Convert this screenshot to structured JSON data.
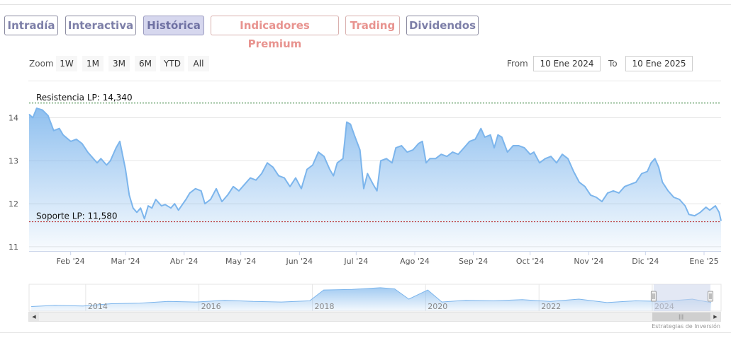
{
  "tabs": [
    {
      "label": "Intradía",
      "style": "blue"
    },
    {
      "label": "Interactiva",
      "style": "blue"
    },
    {
      "label": "Histórica",
      "style": "active"
    },
    {
      "label": "Indicadores Premium",
      "style": "red"
    },
    {
      "label": "Trading",
      "style": "red"
    },
    {
      "label": "Dividendos",
      "style": "blue"
    }
  ],
  "toolbar": {
    "zoom_label": "Zoom",
    "zoom_buttons": [
      "1W",
      "1M",
      "3M",
      "6M",
      "YTD",
      "All"
    ],
    "from_label": "From",
    "from_value": "10 Ene 2024",
    "to_label": "To",
    "to_value": "10 Ene 2025"
  },
  "credits": "Estrategias de Inversión",
  "colors": {
    "line": "#7cb5ec",
    "area_top": "#7cb5ec",
    "resistance": "#2e7d32",
    "support": "#b71c1c",
    "navigator_mask": "#ccd6eb"
  },
  "chart_data": {
    "type": "area",
    "title": "",
    "xlabel": "",
    "ylabel": "",
    "y_ticks": [
      "11",
      "12",
      "13",
      "14"
    ],
    "ylim": [
      10.9,
      14.6
    ],
    "x_ticks": [
      "Feb '24",
      "Mar '24",
      "Abr '24",
      "May '24",
      "Jun '24",
      "Jul '24",
      "Ago '24",
      "Sep '24",
      "Oct '24",
      "Nov '24",
      "Dic '24",
      "Ene '25"
    ],
    "x_range": [
      "2024-01-10",
      "2025-01-10"
    ],
    "grid": true,
    "series": [
      {
        "points": [
          [
            "2024-01-10",
            14.08
          ],
          [
            "2024-01-12",
            14.0
          ],
          [
            "2024-01-14",
            14.22
          ],
          [
            "2024-01-17",
            14.18
          ],
          [
            "2024-01-20",
            14.05
          ],
          [
            "2024-01-23",
            13.7
          ],
          [
            "2024-01-26",
            13.75
          ],
          [
            "2024-01-28",
            13.6
          ],
          [
            "2024-02-01",
            13.45
          ],
          [
            "2024-02-04",
            13.5
          ],
          [
            "2024-02-07",
            13.4
          ],
          [
            "2024-02-10",
            13.2
          ],
          [
            "2024-02-13",
            13.05
          ],
          [
            "2024-02-15",
            12.95
          ],
          [
            "2024-02-17",
            13.05
          ],
          [
            "2024-02-20",
            12.9
          ],
          [
            "2024-02-22",
            13.0
          ],
          [
            "2024-02-25",
            13.3
          ],
          [
            "2024-02-27",
            13.45
          ],
          [
            "2024-03-01",
            12.8
          ],
          [
            "2024-03-03",
            12.2
          ],
          [
            "2024-03-05",
            11.9
          ],
          [
            "2024-03-07",
            11.8
          ],
          [
            "2024-03-09",
            11.9
          ],
          [
            "2024-03-11",
            11.65
          ],
          [
            "2024-03-13",
            11.95
          ],
          [
            "2024-03-15",
            11.9
          ],
          [
            "2024-03-17",
            12.1
          ],
          [
            "2024-03-20",
            11.95
          ],
          [
            "2024-03-22",
            11.98
          ],
          [
            "2024-03-25",
            11.9
          ],
          [
            "2024-03-27",
            12.0
          ],
          [
            "2024-03-29",
            11.85
          ],
          [
            "2024-04-02",
            12.1
          ],
          [
            "2024-04-04",
            12.25
          ],
          [
            "2024-04-07",
            12.35
          ],
          [
            "2024-04-10",
            12.3
          ],
          [
            "2024-04-12",
            12.0
          ],
          [
            "2024-04-15",
            12.1
          ],
          [
            "2024-04-18",
            12.35
          ],
          [
            "2024-04-21",
            12.05
          ],
          [
            "2024-04-24",
            12.2
          ],
          [
            "2024-04-27",
            12.4
          ],
          [
            "2024-04-30",
            12.3
          ],
          [
            "2024-05-03",
            12.45
          ],
          [
            "2024-05-06",
            12.6
          ],
          [
            "2024-05-09",
            12.55
          ],
          [
            "2024-05-12",
            12.7
          ],
          [
            "2024-05-15",
            12.95
          ],
          [
            "2024-05-18",
            12.85
          ],
          [
            "2024-05-21",
            12.65
          ],
          [
            "2024-05-24",
            12.6
          ],
          [
            "2024-05-27",
            12.4
          ],
          [
            "2024-05-30",
            12.6
          ],
          [
            "2024-06-02",
            12.35
          ],
          [
            "2024-06-05",
            12.8
          ],
          [
            "2024-06-08",
            12.9
          ],
          [
            "2024-06-11",
            13.2
          ],
          [
            "2024-06-14",
            13.1
          ],
          [
            "2024-06-17",
            12.8
          ],
          [
            "2024-06-19",
            12.65
          ],
          [
            "2024-06-21",
            12.95
          ],
          [
            "2024-06-24",
            13.05
          ],
          [
            "2024-06-26",
            13.9
          ],
          [
            "2024-06-28",
            13.85
          ],
          [
            "2024-06-30",
            13.6
          ],
          [
            "2024-07-03",
            13.25
          ],
          [
            "2024-07-05",
            12.35
          ],
          [
            "2024-07-07",
            12.7
          ],
          [
            "2024-07-10",
            12.45
          ],
          [
            "2024-07-12",
            12.3
          ],
          [
            "2024-07-14",
            13.0
          ],
          [
            "2024-07-17",
            13.05
          ],
          [
            "2024-07-20",
            12.95
          ],
          [
            "2024-07-22",
            13.3
          ],
          [
            "2024-07-25",
            13.35
          ],
          [
            "2024-07-28",
            13.2
          ],
          [
            "2024-07-31",
            13.25
          ],
          [
            "2024-08-03",
            13.4
          ],
          [
            "2024-08-05",
            13.45
          ],
          [
            "2024-08-07",
            12.95
          ],
          [
            "2024-08-09",
            13.05
          ],
          [
            "2024-08-12",
            13.05
          ],
          [
            "2024-08-15",
            13.15
          ],
          [
            "2024-08-18",
            13.1
          ],
          [
            "2024-08-21",
            13.2
          ],
          [
            "2024-08-24",
            13.15
          ],
          [
            "2024-08-27",
            13.3
          ],
          [
            "2024-08-30",
            13.45
          ],
          [
            "2024-09-02",
            13.5
          ],
          [
            "2024-09-05",
            13.75
          ],
          [
            "2024-09-07",
            13.55
          ],
          [
            "2024-09-10",
            13.6
          ],
          [
            "2024-09-12",
            13.3
          ],
          [
            "2024-09-14",
            13.6
          ],
          [
            "2024-09-16",
            13.55
          ],
          [
            "2024-09-19",
            13.2
          ],
          [
            "2024-09-22",
            13.35
          ],
          [
            "2024-09-25",
            13.35
          ],
          [
            "2024-09-28",
            13.3
          ],
          [
            "2024-10-01",
            13.15
          ],
          [
            "2024-10-03",
            13.2
          ],
          [
            "2024-10-06",
            12.95
          ],
          [
            "2024-10-09",
            13.05
          ],
          [
            "2024-10-12",
            13.1
          ],
          [
            "2024-10-15",
            12.95
          ],
          [
            "2024-10-18",
            13.15
          ],
          [
            "2024-10-21",
            13.05
          ],
          [
            "2024-10-24",
            12.75
          ],
          [
            "2024-10-27",
            12.5
          ],
          [
            "2024-10-30",
            12.4
          ],
          [
            "2024-11-02",
            12.2
          ],
          [
            "2024-11-05",
            12.15
          ],
          [
            "2024-11-08",
            12.05
          ],
          [
            "2024-11-11",
            12.25
          ],
          [
            "2024-11-14",
            12.3
          ],
          [
            "2024-11-17",
            12.25
          ],
          [
            "2024-11-20",
            12.4
          ],
          [
            "2024-11-23",
            12.45
          ],
          [
            "2024-11-26",
            12.5
          ],
          [
            "2024-11-29",
            12.7
          ],
          [
            "2024-12-02",
            12.75
          ],
          [
            "2024-12-04",
            12.95
          ],
          [
            "2024-12-06",
            13.05
          ],
          [
            "2024-12-08",
            12.85
          ],
          [
            "2024-12-10",
            12.5
          ],
          [
            "2024-12-13",
            12.3
          ],
          [
            "2024-12-16",
            12.15
          ],
          [
            "2024-12-19",
            12.1
          ],
          [
            "2024-12-22",
            11.95
          ],
          [
            "2024-12-24",
            11.75
          ],
          [
            "2024-12-27",
            11.72
          ],
          [
            "2024-12-30",
            11.8
          ],
          [
            "2025-01-02",
            11.92
          ],
          [
            "2025-01-04",
            11.85
          ],
          [
            "2025-01-07",
            11.95
          ],
          [
            "2025-01-09",
            11.8
          ],
          [
            "2025-01-10",
            11.6
          ]
        ]
      }
    ],
    "plot_lines": [
      {
        "label": "Resistencia LP: 14,340",
        "value": 14.34,
        "style": "dashed",
        "color": "#2e7d32"
      },
      {
        "label": "Soporte LP: 11,580",
        "value": 11.58,
        "style": "dashed",
        "color": "#b71c1c"
      }
    ],
    "navigator": {
      "year_ticks": [
        "2014",
        "2016",
        "2018",
        "2020",
        "2022",
        "2024"
      ],
      "x_range": [
        "2013-01-01",
        "2025-01-10"
      ],
      "selected_range": [
        "2024-01-10",
        "2025-01-10"
      ],
      "values": [
        [
          "2013-01",
          11.3
        ],
        [
          "2013-06",
          11.5
        ],
        [
          "2013-12",
          11.4
        ],
        [
          "2014-06",
          11.8
        ],
        [
          "2014-12",
          11.9
        ],
        [
          "2015-06",
          12.2
        ],
        [
          "2015-12",
          12.1
        ],
        [
          "2016-06",
          12.4
        ],
        [
          "2016-12",
          12.2
        ],
        [
          "2017-06",
          12.1
        ],
        [
          "2017-12",
          12.3
        ],
        [
          "2018-03",
          14.2
        ],
        [
          "2018-09",
          14.3
        ],
        [
          "2019-03",
          14.6
        ],
        [
          "2019-06",
          14.4
        ],
        [
          "2019-09",
          12.6
        ],
        [
          "2020-01",
          14.2
        ],
        [
          "2020-04",
          12.1
        ],
        [
          "2020-09",
          12.4
        ],
        [
          "2021-03",
          12.3
        ],
        [
          "2021-09",
          12.5
        ],
        [
          "2022-03",
          12.2
        ],
        [
          "2022-09",
          12.6
        ],
        [
          "2023-03",
          12.0
        ],
        [
          "2023-09",
          12.3
        ],
        [
          "2024-03",
          12.2
        ],
        [
          "2024-09",
          12.6
        ],
        [
          "2025-01",
          12.0
        ]
      ]
    }
  }
}
